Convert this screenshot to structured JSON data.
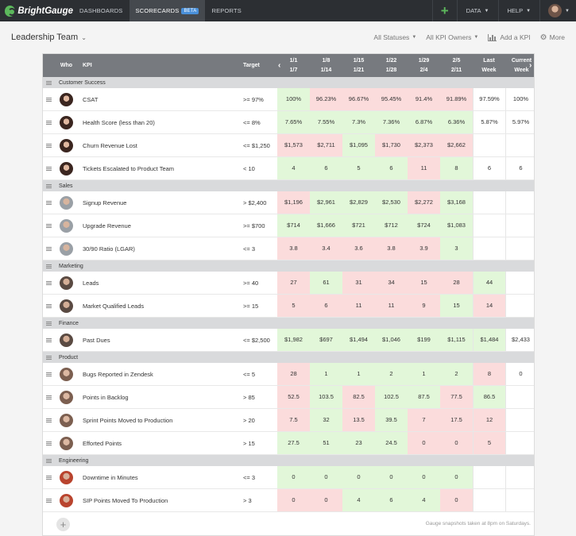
{
  "nav": {
    "logo": "BrightGauge",
    "links": [
      "DASHBOARDS",
      "SCORECARDS",
      "REPORTS"
    ],
    "beta": "BETA",
    "plus": "+",
    "data": "DATA",
    "help": "HELP",
    "accent": "#5cb85c"
  },
  "toolbar": {
    "team": "Leadership Team",
    "statuses": "All Statuses",
    "owners": "All KPI Owners",
    "add_kpi": "Add a KPI",
    "more": "More"
  },
  "table": {
    "headers": {
      "who": "Who",
      "kpi": "KPI",
      "target": "Target",
      "weeks": [
        {
          "top": "1/1",
          "bottom": "1/7"
        },
        {
          "top": "1/8",
          "bottom": "1/14"
        },
        {
          "top": "1/15",
          "bottom": "1/21"
        },
        {
          "top": "1/22",
          "bottom": "1/28"
        },
        {
          "top": "1/29",
          "bottom": "2/4"
        },
        {
          "top": "2/5",
          "bottom": "2/11"
        }
      ],
      "last_week": {
        "top": "Last",
        "bottom": "Week"
      },
      "current_week": {
        "top": "Current",
        "bottom": "Week"
      }
    },
    "sections": [
      {
        "name": "Customer Success",
        "rows": [
          {
            "avatar": "f",
            "kpi": "CSAT",
            "target": ">= 97%",
            "values": [
              "100%",
              "96.23%",
              "96.67%",
              "95.45%",
              "91.4%",
              "91.89%"
            ],
            "status": [
              "g",
              "r",
              "r",
              "r",
              "r",
              "r"
            ],
            "last": "97.59%",
            "last_status": "",
            "current": "100%"
          },
          {
            "avatar": "f",
            "kpi": "Health Score (less than 20)",
            "target": "<= 8%",
            "values": [
              "7.65%",
              "7.55%",
              "7.3%",
              "7.36%",
              "6.87%",
              "6.36%"
            ],
            "status": [
              "g",
              "g",
              "g",
              "g",
              "g",
              "g"
            ],
            "last": "5.87%",
            "last_status": "",
            "current": "5.97%"
          },
          {
            "avatar": "f",
            "kpi": "Churn Revenue Lost",
            "target": "<= $1,250",
            "values": [
              "$1,573",
              "$2,711",
              "$1,095",
              "$1,730",
              "$2,373",
              "$2,662"
            ],
            "status": [
              "r",
              "r",
              "g",
              "r",
              "r",
              "r"
            ],
            "last": "",
            "last_status": "",
            "current": ""
          },
          {
            "avatar": "f",
            "kpi": "Tickets Escalated to Product Team",
            "target": "< 10",
            "values": [
              "4",
              "6",
              "5",
              "6",
              "11",
              "8"
            ],
            "status": [
              "g",
              "g",
              "g",
              "g",
              "r",
              "g"
            ],
            "last": "6",
            "last_status": "",
            "current": "6"
          }
        ]
      },
      {
        "name": "Sales",
        "rows": [
          {
            "avatar": "m1",
            "kpi": "Signup Revenue",
            "target": "> $2,400",
            "values": [
              "$1,196",
              "$2,961",
              "$2,829",
              "$2,530",
              "$2,272",
              "$3,168"
            ],
            "status": [
              "r",
              "g",
              "g",
              "g",
              "r",
              "g"
            ],
            "last": "",
            "last_status": "",
            "current": ""
          },
          {
            "avatar": "m1",
            "kpi": "Upgrade Revenue",
            "target": ">= $700",
            "values": [
              "$714",
              "$1,666",
              "$721",
              "$712",
              "$724",
              "$1,083"
            ],
            "status": [
              "g",
              "g",
              "g",
              "g",
              "g",
              "g"
            ],
            "last": "",
            "last_status": "",
            "current": ""
          },
          {
            "avatar": "m1",
            "kpi": "30/90 Ratio (LGAR)",
            "target": "<= 3",
            "values": [
              "3.8",
              "3.4",
              "3.6",
              "3.8",
              "3.9",
              "3"
            ],
            "status": [
              "r",
              "r",
              "r",
              "r",
              "r",
              "g"
            ],
            "last": "",
            "last_status": "",
            "current": ""
          }
        ]
      },
      {
        "name": "Marketing",
        "rows": [
          {
            "avatar": "m2",
            "kpi": "Leads",
            "target": ">= 40",
            "values": [
              "27",
              "61",
              "31",
              "34",
              "15",
              "28"
            ],
            "status": [
              "r",
              "g",
              "r",
              "r",
              "r",
              "r"
            ],
            "last": "44",
            "last_status": "g",
            "current": ""
          },
          {
            "avatar": "m2",
            "kpi": "Market Qualified Leads",
            "target": ">= 15",
            "values": [
              "5",
              "6",
              "11",
              "11",
              "9",
              "15"
            ],
            "status": [
              "r",
              "r",
              "r",
              "r",
              "r",
              "g"
            ],
            "last": "14",
            "last_status": "r",
            "current": ""
          }
        ]
      },
      {
        "name": "Finance",
        "rows": [
          {
            "avatar": "m2",
            "kpi": "Past Dues",
            "target": "<= $2,500",
            "values": [
              "$1,982",
              "$697",
              "$1,494",
              "$1,046",
              "$199",
              "$1,115"
            ],
            "status": [
              "g",
              "g",
              "g",
              "g",
              "g",
              "g"
            ],
            "last": "$1,484",
            "last_status": "g",
            "current": "$2,433"
          }
        ]
      },
      {
        "name": "Product",
        "rows": [
          {
            "avatar": "m3",
            "kpi": "Bugs Reported in Zendesk",
            "target": "<= 5",
            "values": [
              "28",
              "1",
              "1",
              "2",
              "1",
              "2"
            ],
            "status": [
              "r",
              "g",
              "g",
              "g",
              "g",
              "g"
            ],
            "last": "8",
            "last_status": "r",
            "current": "0"
          },
          {
            "avatar": "m3",
            "kpi": "Points in Backlog",
            "target": "> 85",
            "values": [
              "52.5",
              "103.5",
              "82.5",
              "102.5",
              "87.5",
              "77.5"
            ],
            "status": [
              "r",
              "g",
              "r",
              "g",
              "g",
              "r"
            ],
            "last": "86.5",
            "last_status": "g",
            "current": ""
          },
          {
            "avatar": "m3",
            "kpi": "Sprint Points Moved to Production",
            "target": "> 20",
            "values": [
              "7.5",
              "32",
              "13.5",
              "39.5",
              "7",
              "17.5"
            ],
            "status": [
              "r",
              "g",
              "r",
              "g",
              "r",
              "r"
            ],
            "last": "12",
            "last_status": "r",
            "current": ""
          },
          {
            "avatar": "m3",
            "kpi": "Efforted Points",
            "target": "> 15",
            "values": [
              "27.5",
              "51",
              "23",
              "24.5",
              "0",
              "0"
            ],
            "status": [
              "g",
              "g",
              "g",
              "g",
              "r",
              "r"
            ],
            "last": "5",
            "last_status": "r",
            "current": ""
          }
        ]
      },
      {
        "name": "Engineering",
        "rows": [
          {
            "avatar": "m4",
            "kpi": "Downtime in Minutes",
            "target": "<= 3",
            "values": [
              "0",
              "0",
              "0",
              "0",
              "0",
              "0"
            ],
            "status": [
              "g",
              "g",
              "g",
              "g",
              "g",
              "g"
            ],
            "last": "",
            "last_status": "",
            "current": ""
          },
          {
            "avatar": "m4",
            "kpi": "SIP Points Moved To Production",
            "target": "> 3",
            "values": [
              "0",
              "0",
              "4",
              "6",
              "4",
              "0"
            ],
            "status": [
              "r",
              "r",
              "g",
              "g",
              "g",
              "r"
            ],
            "last": "",
            "last_status": "",
            "current": ""
          }
        ]
      }
    ]
  },
  "footer": {
    "add": "+",
    "note": "Gauge snapshots taken at 8pm on Saturdays."
  }
}
